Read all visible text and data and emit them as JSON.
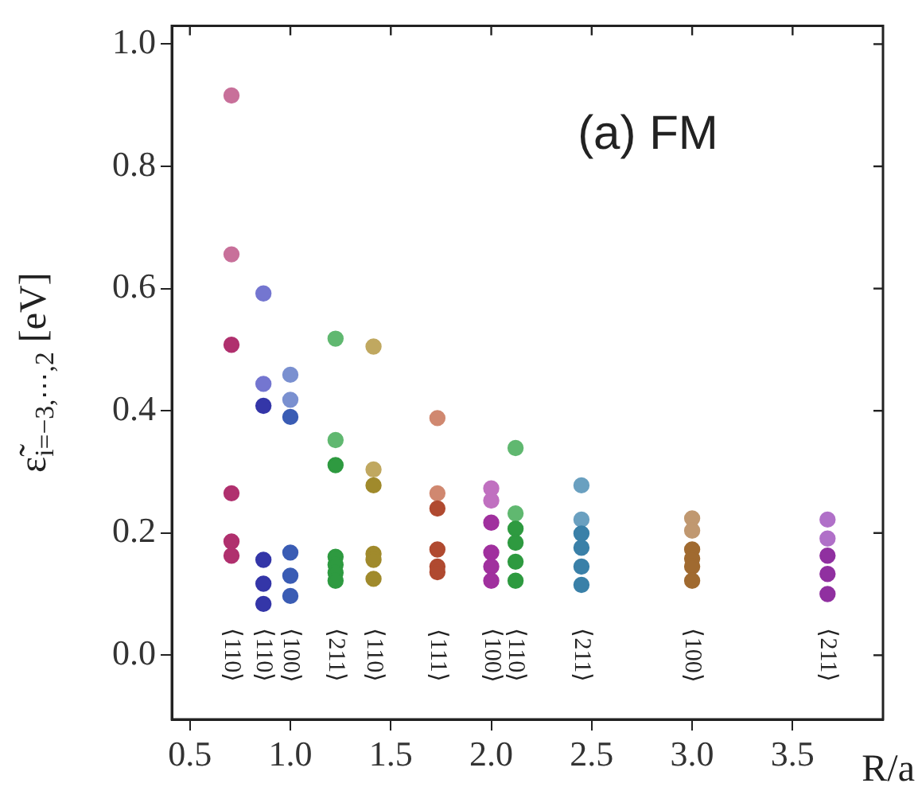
{
  "chart_data": {
    "type": "scatter",
    "ylabel": "ε̃$_{i=−3,⋯,2}$ [eV]",
    "xlabel": "R/a",
    "marker": "circle",
    "grid": false,
    "legend": false,
    "xlim": [
      0.41,
      3.95
    ],
    "ylim": [
      -0.105,
      1.03
    ],
    "xticks": [
      {
        "value": 0.5,
        "label": "0.5"
      },
      {
        "value": 1.0,
        "label": "1.0"
      },
      {
        "value": 1.5,
        "label": "1.5"
      },
      {
        "value": 2.0,
        "label": "2.0"
      },
      {
        "value": 2.5,
        "label": "2.5"
      },
      {
        "value": 3.0,
        "label": "3.0"
      },
      {
        "value": 3.5,
        "label": "3.5"
      }
    ],
    "yticks": [
      {
        "value": 0.0,
        "label": "0.0"
      },
      {
        "value": 0.2,
        "label": "0.2"
      },
      {
        "value": 0.4,
        "label": "0.4"
      },
      {
        "value": 0.6,
        "label": "0.6"
      },
      {
        "value": 0.8,
        "label": "0.8"
      },
      {
        "value": 1.0,
        "label": "1.0"
      }
    ],
    "series": [
      {
        "color": "#b0306e",
        "x": [
          0.707,
          0.707,
          0.707,
          0.707
        ],
        "values": [
          0.508,
          0.265,
          0.186,
          0.163
        ]
      },
      {
        "color": "#c8709a",
        "x": [
          0.707,
          0.707
        ],
        "values": [
          0.916,
          0.656
        ]
      },
      {
        "color": "#3436a8",
        "x": [
          0.866,
          0.866,
          0.866,
          0.866
        ],
        "values": [
          0.408,
          0.156,
          0.117,
          0.084
        ]
      },
      {
        "color": "#7476d0",
        "x": [
          0.866,
          0.866
        ],
        "values": [
          0.592,
          0.444
        ]
      },
      {
        "color": "#3a5cb4",
        "x": [
          1.0,
          1.0,
          1.0,
          1.0
        ],
        "values": [
          0.39,
          0.168,
          0.13,
          0.097
        ]
      },
      {
        "color": "#7a90d0",
        "x": [
          1.0,
          1.0
        ],
        "values": [
          0.459,
          0.418
        ]
      },
      {
        "color": "#2e9a40",
        "x": [
          1.225,
          1.225,
          1.225,
          1.225,
          1.225
        ],
        "values": [
          0.311,
          0.161,
          0.148,
          0.135,
          0.122
        ]
      },
      {
        "color": "#60b870",
        "x": [
          1.225,
          1.225
        ],
        "values": [
          0.518,
          0.352
        ]
      },
      {
        "color": "#a08a2c",
        "x": [
          1.414,
          1.414,
          1.414,
          1.414
        ],
        "values": [
          0.278,
          0.166,
          0.156,
          0.125
        ]
      },
      {
        "color": "#c0a860",
        "x": [
          1.414,
          1.414
        ],
        "values": [
          0.505,
          0.304
        ]
      },
      {
        "color": "#b04a30",
        "x": [
          1.732,
          1.732,
          1.732,
          1.732
        ],
        "values": [
          0.24,
          0.173,
          0.145,
          0.136
        ]
      },
      {
        "color": "#d08870",
        "x": [
          1.732,
          1.732
        ],
        "values": [
          0.388,
          0.265
        ]
      },
      {
        "color": "#a0309e",
        "x": [
          2.0,
          2.0,
          2.0,
          2.0
        ],
        "values": [
          0.217,
          0.168,
          0.145,
          0.122
        ]
      },
      {
        "color": "#c070c0",
        "x": [
          2.0,
          2.0
        ],
        "values": [
          0.273,
          0.253
        ]
      },
      {
        "color": "#2e9a40",
        "x": [
          2.121,
          2.121,
          2.121,
          2.121
        ],
        "values": [
          0.207,
          0.184,
          0.153,
          0.122
        ]
      },
      {
        "color": "#60b870",
        "x": [
          2.121,
          2.121
        ],
        "values": [
          0.339,
          0.232
        ]
      },
      {
        "color": "#3a80a8",
        "x": [
          2.449,
          2.449,
          2.449,
          2.449
        ],
        "values": [
          0.199,
          0.176,
          0.145,
          0.115
        ]
      },
      {
        "color": "#6aa0c0",
        "x": [
          2.449,
          2.449
        ],
        "values": [
          0.278,
          0.222
        ]
      },
      {
        "color": "#a06a30",
        "x": [
          3.0,
          3.0,
          3.0,
          3.0
        ],
        "values": [
          0.173,
          0.158,
          0.145,
          0.122
        ]
      },
      {
        "color": "#c09870",
        "x": [
          3.0,
          3.0
        ],
        "values": [
          0.224,
          0.204
        ]
      },
      {
        "color": "#9030a0",
        "x": [
          3.674,
          3.674,
          3.674
        ],
        "values": [
          0.163,
          0.133,
          0.1
        ]
      },
      {
        "color": "#b070c8",
        "x": [
          3.674,
          3.674
        ],
        "values": [
          0.222,
          0.191
        ]
      }
    ],
    "annotations": [
      "(a) FM",
      "⟨110⟩",
      "⟨110⟩",
      "⟨100⟩",
      "⟨211⟩",
      "⟨110⟩",
      "⟨111⟩",
      "⟨100⟩",
      "⟨110⟩",
      "⟨211⟩",
      "⟨100⟩",
      "⟨211⟩"
    ]
  }
}
